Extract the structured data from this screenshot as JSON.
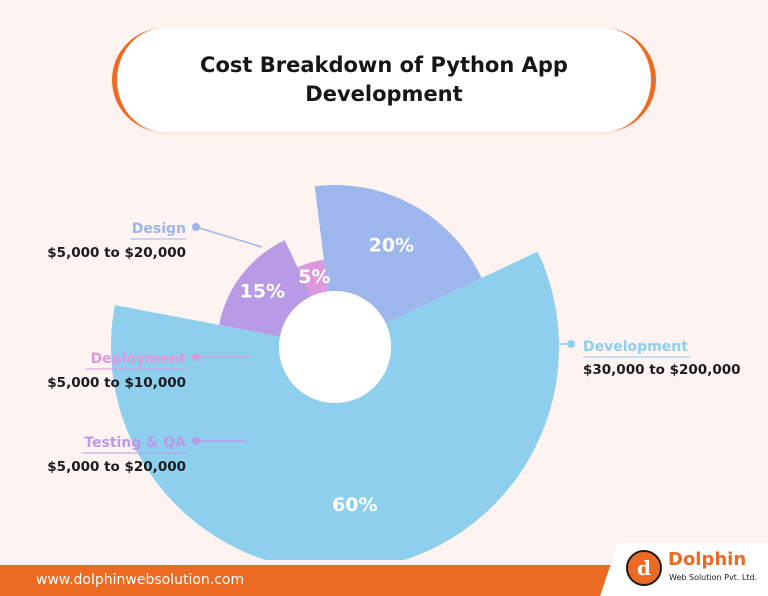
{
  "title": "Cost Breakdown of Python App Development",
  "chart_data": {
    "type": "pie",
    "style": "rose-donut",
    "slices": [
      {
        "name": "Development",
        "percent": 60,
        "label": "60%",
        "range": "$30,000 to $200,000",
        "color": "#8dcfec",
        "label_side": "right"
      },
      {
        "name": "Testing & QA",
        "percent": 15,
        "label": "15%",
        "range": "$5,000 to $20,000",
        "color": "#b99ae6",
        "label_side": "left"
      },
      {
        "name": "Deployment",
        "percent": 5,
        "label": "5%",
        "range": "$5,000 to $10,000",
        "color": "#dd99dd",
        "label_side": "left"
      },
      {
        "name": "Design",
        "percent": 20,
        "label": "20%",
        "range": "$5,000 to $20,000",
        "color": "#9db6ec",
        "label_side": "left"
      }
    ]
  },
  "footer": {
    "url": "www.dolphinwebsolution.com",
    "brand": "Dolphin",
    "tagline": "Web Solution Pvt. Ltd.",
    "brand_color": "#ec6a22"
  }
}
